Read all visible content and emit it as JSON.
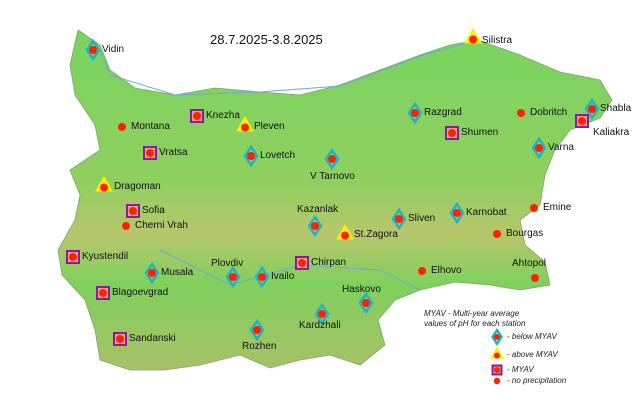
{
  "title": "28.7.2025-3.8.2025",
  "colors": {
    "below": "#1fb3c7",
    "above": "#ffef00",
    "myav": "#8b1a9e",
    "dot": "#ff2200",
    "land": "#6fcf5a",
    "highland": "#b9c46a"
  },
  "stations": [
    {
      "name": "Vidin",
      "type": "below"
    },
    {
      "name": "Silistra",
      "type": "above"
    },
    {
      "name": "Knezha",
      "type": "myav"
    },
    {
      "name": "Pleven",
      "type": "above"
    },
    {
      "name": "Montana",
      "type": "none"
    },
    {
      "name": "Razgrad",
      "type": "below"
    },
    {
      "name": "Dobritch",
      "type": "none"
    },
    {
      "name": "Shabla",
      "type": "below"
    },
    {
      "name": "Kaliakra",
      "type": "myav"
    },
    {
      "name": "Shumen",
      "type": "myav"
    },
    {
      "name": "Varna",
      "type": "below"
    },
    {
      "name": "Vratsa",
      "type": "myav"
    },
    {
      "name": "Lovetch",
      "type": "below"
    },
    {
      "name": "V Tarnovo",
      "type": "below"
    },
    {
      "name": "Dragoman",
      "type": "above"
    },
    {
      "name": "Sofia",
      "type": "myav"
    },
    {
      "name": "Cherni Vrah",
      "type": "none"
    },
    {
      "name": "Kazanlak",
      "type": "below"
    },
    {
      "name": "Sliven",
      "type": "below"
    },
    {
      "name": "Karnobat",
      "type": "below"
    },
    {
      "name": "Emine",
      "type": "none"
    },
    {
      "name": "St.Zagora",
      "type": "above"
    },
    {
      "name": "Bourgas",
      "type": "none"
    },
    {
      "name": "Kyustendil",
      "type": "myav"
    },
    {
      "name": "Musala",
      "type": "below"
    },
    {
      "name": "Plovdiv",
      "type": "below"
    },
    {
      "name": "Ivailo",
      "type": "below"
    },
    {
      "name": "Chirpan",
      "type": "myav"
    },
    {
      "name": "Elhovo",
      "type": "none"
    },
    {
      "name": "Ahtopol",
      "type": "none"
    },
    {
      "name": "Blagoevgrad",
      "type": "myav"
    },
    {
      "name": "Haskovo",
      "type": "below"
    },
    {
      "name": "Kardzhali",
      "type": "below"
    },
    {
      "name": "Sandanski",
      "type": "myav"
    },
    {
      "name": "Rozhen",
      "type": "below"
    }
  ],
  "legend": {
    "note_line1": "MYAV - Multi-year average",
    "note_line2": "values    of pH for each station",
    "items": [
      {
        "type": "below",
        "label": "- below MYAV"
      },
      {
        "type": "above",
        "label": "- above MYAV"
      },
      {
        "type": "myav",
        "label": "- MYAV"
      },
      {
        "type": "none",
        "label": "- no precipitation"
      }
    ]
  }
}
